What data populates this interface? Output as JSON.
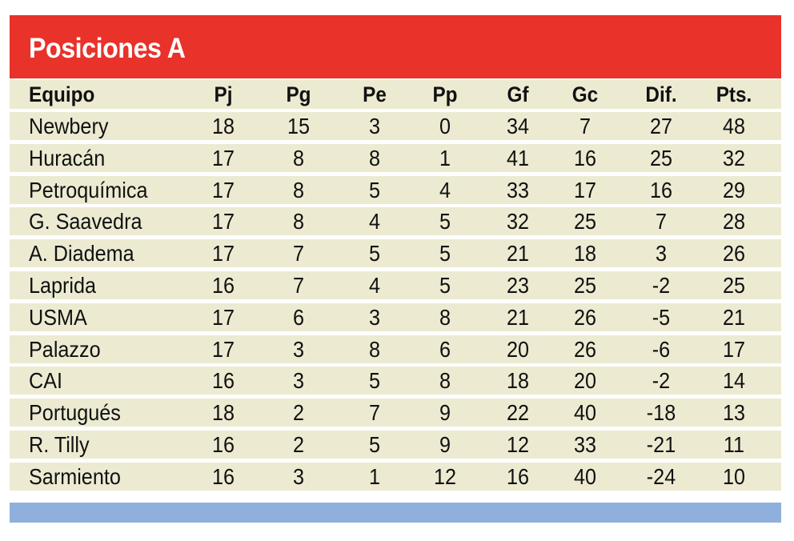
{
  "title": "Posiciones A",
  "colors": {
    "header": "#e8322a",
    "row": "#ecebd2",
    "footer": "#8fb0dc"
  },
  "columns": [
    "Equipo",
    "Pj",
    "Pg",
    "Pe",
    "Pp",
    "Gf",
    "Gc",
    "Dif.",
    "Pts."
  ],
  "rows": [
    [
      "Newbery",
      "18",
      "15",
      "3",
      "0",
      "34",
      "7",
      "27",
      "48"
    ],
    [
      "Huracán",
      "17",
      "8",
      "8",
      "1",
      "41",
      "16",
      "25",
      "32"
    ],
    [
      "Petroquímica",
      "17",
      "8",
      "5",
      "4",
      "33",
      "17",
      "16",
      "29"
    ],
    [
      "G. Saavedra",
      "17",
      "8",
      "4",
      "5",
      "32",
      "25",
      "7",
      "28"
    ],
    [
      "A. Diadema",
      "17",
      "7",
      "5",
      "5",
      "21",
      "18",
      "3",
      "26"
    ],
    [
      "Laprida",
      "16",
      "7",
      "4",
      "5",
      "23",
      "25",
      "-2",
      "25"
    ],
    [
      "USMA",
      "17",
      "6",
      "3",
      "8",
      "21",
      "26",
      "-5",
      "21"
    ],
    [
      "Palazzo",
      "17",
      "3",
      "8",
      "6",
      "20",
      "26",
      "-6",
      "17"
    ],
    [
      "CAI",
      "16",
      "3",
      "5",
      "8",
      "18",
      "20",
      "-2",
      "14"
    ],
    [
      "Portugués",
      "18",
      "2",
      "7",
      "9",
      "22",
      "40",
      "-18",
      "13"
    ],
    [
      "R. Tilly",
      "16",
      "2",
      "5",
      "9",
      "12",
      "33",
      "-21",
      "11"
    ],
    [
      "Sarmiento",
      "16",
      "3",
      "1",
      "12",
      "16",
      "40",
      "-24",
      "10"
    ]
  ]
}
